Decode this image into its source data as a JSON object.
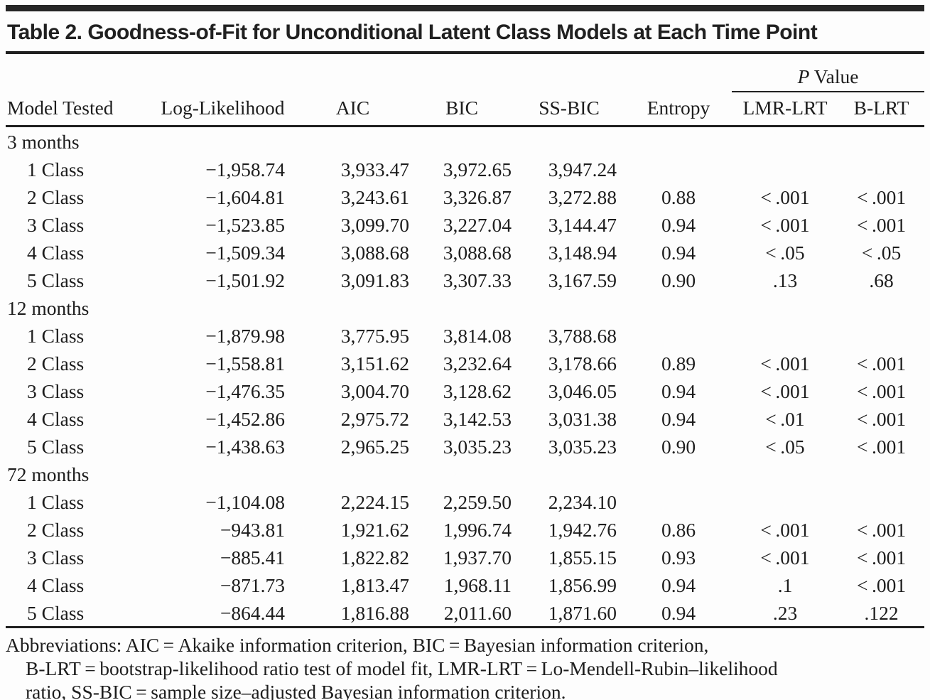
{
  "title": "Table 2. Goodness-of-Fit for Unconditional Latent Class Models at Each Time Point",
  "header": {
    "spanner_p": "P",
    "spanner_rest": "Value",
    "columns": [
      "Model Tested",
      "Log-Likelihood",
      "AIC",
      "BIC",
      "SS-BIC",
      "Entropy",
      "LMR-LRT",
      "B-LRT"
    ]
  },
  "sections": [
    {
      "label": "3 months",
      "rows": [
        {
          "model": "1 Class",
          "loglik": "−1,958.74",
          "aic": "3,933.47",
          "bic": "3,972.65",
          "ssbic": "3,947.24",
          "entropy": "",
          "lmr_lrt": "",
          "b_lrt": ""
        },
        {
          "model": "2 Class",
          "loglik": "−1,604.81",
          "aic": "3,243.61",
          "bic": "3,326.87",
          "ssbic": "3,272.88",
          "entropy": "0.88",
          "lmr_lrt": "< .001",
          "b_lrt": "< .001"
        },
        {
          "model": "3 Class",
          "loglik": "−1,523.85",
          "aic": "3,099.70",
          "bic": "3,227.04",
          "ssbic": "3,144.47",
          "entropy": "0.94",
          "lmr_lrt": "< .001",
          "b_lrt": "< .001"
        },
        {
          "model": "4 Class",
          "loglik": "−1,509.34",
          "aic": "3,088.68",
          "bic": "3,088.68",
          "ssbic": "3,148.94",
          "entropy": "0.94",
          "lmr_lrt": "< .05",
          "b_lrt": "< .05"
        },
        {
          "model": "5 Class",
          "loglik": "−1,501.92",
          "aic": "3,091.83",
          "bic": "3,307.33",
          "ssbic": "3,167.59",
          "entropy": "0.90",
          "lmr_lrt": ".13",
          "b_lrt": ".68"
        }
      ]
    },
    {
      "label": "12 months",
      "rows": [
        {
          "model": "1 Class",
          "loglik": "−1,879.98",
          "aic": "3,775.95",
          "bic": "3,814.08",
          "ssbic": "3,788.68",
          "entropy": "",
          "lmr_lrt": "",
          "b_lrt": ""
        },
        {
          "model": "2 Class",
          "loglik": "−1,558.81",
          "aic": "3,151.62",
          "bic": "3,232.64",
          "ssbic": "3,178.66",
          "entropy": "0.89",
          "lmr_lrt": "< .001",
          "b_lrt": "< .001"
        },
        {
          "model": "3 Class",
          "loglik": "−1,476.35",
          "aic": "3,004.70",
          "bic": "3,128.62",
          "ssbic": "3,046.05",
          "entropy": "0.94",
          "lmr_lrt": "< .001",
          "b_lrt": "< .001"
        },
        {
          "model": "4 Class",
          "loglik": "−1,452.86",
          "aic": "2,975.72",
          "bic": "3,142.53",
          "ssbic": "3,031.38",
          "entropy": "0.94",
          "lmr_lrt": "< .01",
          "b_lrt": "< .001"
        },
        {
          "model": "5 Class",
          "loglik": "−1,438.63",
          "aic": "2,965.25",
          "bic": "3,035.23",
          "ssbic": "3,035.23",
          "entropy": "0.90",
          "lmr_lrt": "< .05",
          "b_lrt": "< .001"
        }
      ]
    },
    {
      "label": "72 months",
      "rows": [
        {
          "model": "1 Class",
          "loglik": "−1,104.08",
          "aic": "2,224.15",
          "bic": "2,259.50",
          "ssbic": "2,234.10",
          "entropy": "",
          "lmr_lrt": "",
          "b_lrt": ""
        },
        {
          "model": "2 Class",
          "loglik": "−943.81",
          "aic": "1,921.62",
          "bic": "1,996.74",
          "ssbic": "1,942.76",
          "entropy": "0.86",
          "lmr_lrt": "< .001",
          "b_lrt": "< .001"
        },
        {
          "model": "3 Class",
          "loglik": "−885.41",
          "aic": "1,822.82",
          "bic": "1,937.70",
          "ssbic": "1,855.15",
          "entropy": "0.93",
          "lmr_lrt": "< .001",
          "b_lrt": "< .001"
        },
        {
          "model": "4 Class",
          "loglik": "−871.73",
          "aic": "1,813.47",
          "bic": "1,968.11",
          "ssbic": "1,856.99",
          "entropy": "0.94",
          "lmr_lrt": ".1",
          "b_lrt": "< .001"
        },
        {
          "model": "5 Class",
          "loglik": "−864.44",
          "aic": "1,816.88",
          "bic": "2,011.60",
          "ssbic": "1,871.60",
          "entropy": "0.94",
          "lmr_lrt": ".23",
          "b_lrt": ".122"
        }
      ]
    }
  ],
  "footnote_lines": [
    "Abbreviations: AIC = Akaike information criterion, BIC = Bayesian information criterion,",
    "B-LRT = bootstrap-likelihood ratio test of model fit, LMR-LRT = Lo-Mendell-Rubin–likelihood",
    "ratio, SS-BIC = sample size–adjusted Bayesian information criterion."
  ],
  "colors": {
    "rule_dark": "#1f1f1f",
    "rule_gray": "#9b9b9b",
    "text": "#1d1d1d",
    "background": "#fdfdfd"
  }
}
